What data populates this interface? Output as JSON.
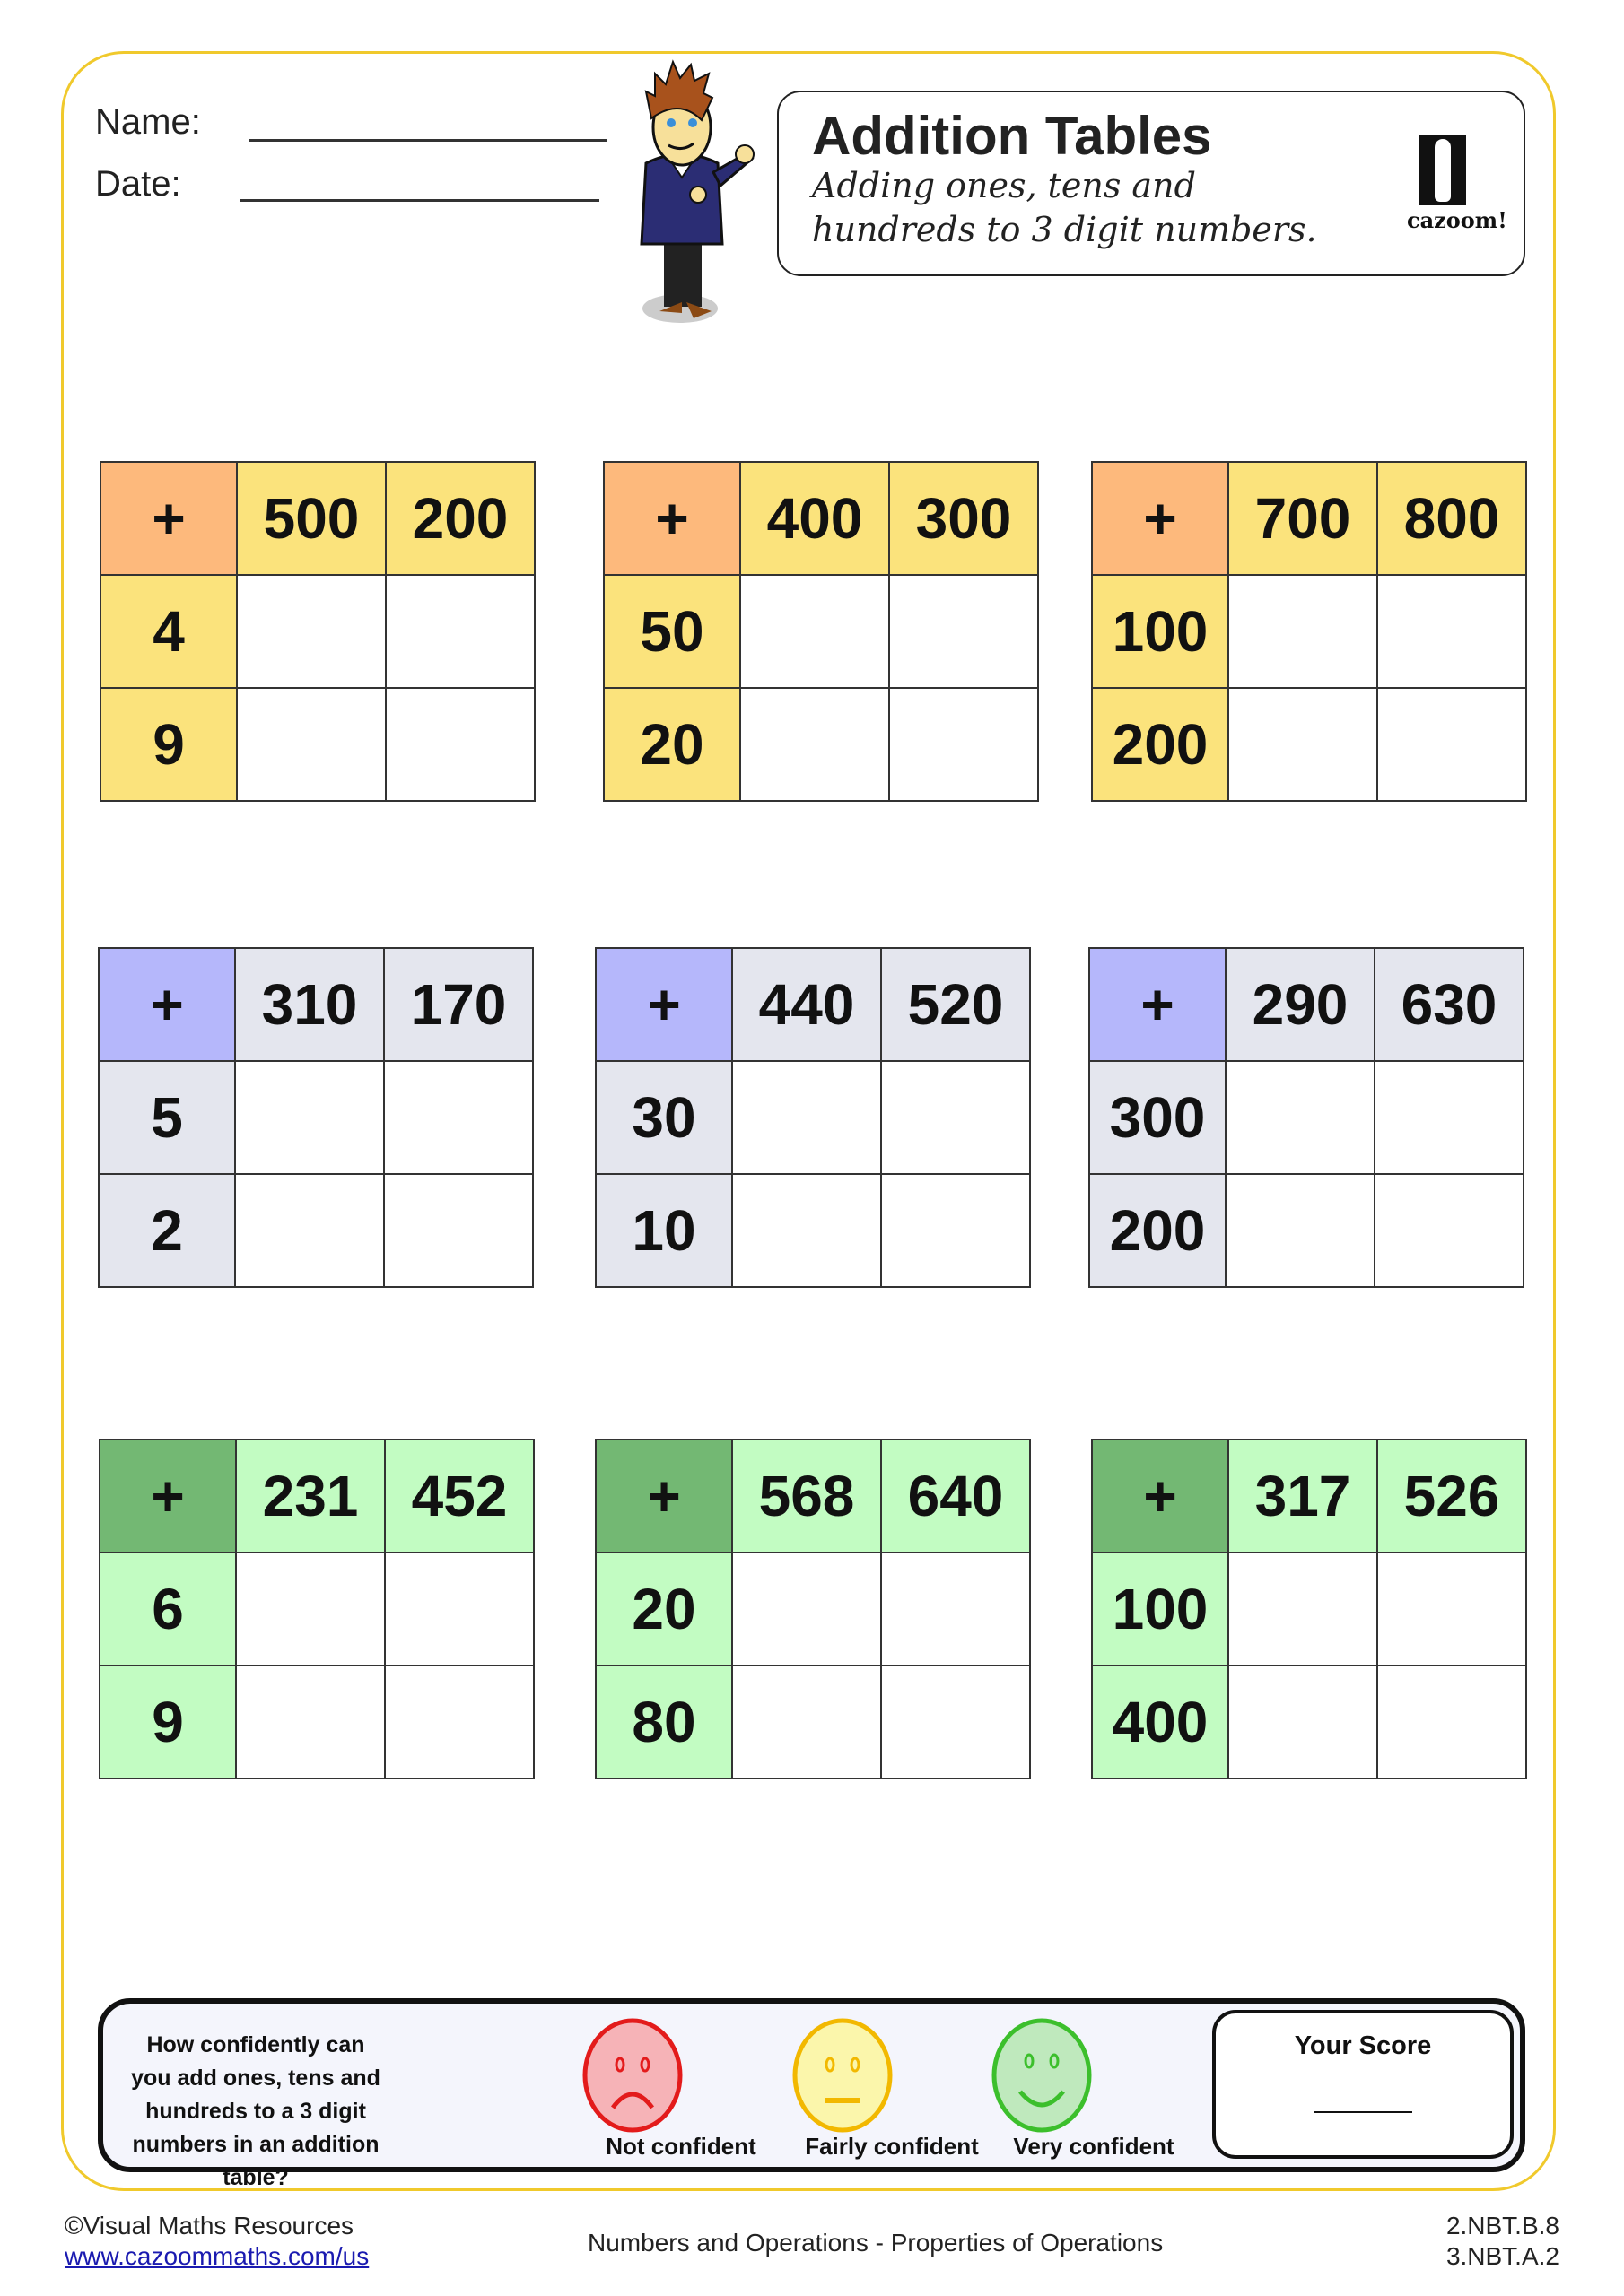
{
  "header": {
    "name_label": "Name:",
    "date_label": "Date:"
  },
  "title_box": {
    "title": "Addition Tables",
    "subtitle_line1": "Adding ones, tens and",
    "subtitle_line2": "hundreds to 3 digit numbers.",
    "logo_text": "cazoom!"
  },
  "colors": {
    "frame": "#f0c92c",
    "orange": "#fdb97c",
    "yellow": "#fbe37c",
    "purple": "#b5b7fb",
    "grey": "#e4e6ee",
    "dark_green": "#73b873",
    "light_green": "#c2fcc2"
  },
  "tables": [
    {
      "op": "+",
      "cols": [
        "500",
        "200"
      ],
      "rows": [
        "4",
        "9"
      ],
      "corner": "#fdb97c",
      "head": "#fbe37c"
    },
    {
      "op": "+",
      "cols": [
        "400",
        "300"
      ],
      "rows": [
        "50",
        "20"
      ],
      "corner": "#fdb97c",
      "head": "#fbe37c"
    },
    {
      "op": "+",
      "cols": [
        "700",
        "800"
      ],
      "rows": [
        "100",
        "200"
      ],
      "corner": "#fdb97c",
      "head": "#fbe37c"
    },
    {
      "op": "+",
      "cols": [
        "310",
        "170"
      ],
      "rows": [
        "5",
        "2"
      ],
      "corner": "#b5b7fb",
      "head": "#e4e6ee"
    },
    {
      "op": "+",
      "cols": [
        "440",
        "520"
      ],
      "rows": [
        "30",
        "10"
      ],
      "corner": "#b5b7fb",
      "head": "#e4e6ee"
    },
    {
      "op": "+",
      "cols": [
        "290",
        "630"
      ],
      "rows": [
        "300",
        "200"
      ],
      "corner": "#b5b7fb",
      "head": "#e4e6ee"
    },
    {
      "op": "+",
      "cols": [
        "231",
        "452"
      ],
      "rows": [
        "6",
        "9"
      ],
      "corner": "#73b873",
      "head": "#c2fcc2"
    },
    {
      "op": "+",
      "cols": [
        "568",
        "640"
      ],
      "rows": [
        "20",
        "80"
      ],
      "corner": "#73b873",
      "head": "#c2fcc2"
    },
    {
      "op": "+",
      "cols": [
        "317",
        "526"
      ],
      "rows": [
        "100",
        "400"
      ],
      "corner": "#73b873",
      "head": "#c2fcc2"
    }
  ],
  "confidence": {
    "question": "How confidently can you add ones, tens and hundreds to a 3 digit numbers in an addition table?",
    "faces": [
      {
        "label": "Not confident",
        "icon": "sad-face-icon",
        "color": "#e31b1b",
        "fill": "#f6b3b7"
      },
      {
        "label": "Fairly confident",
        "icon": "neutral-face-icon",
        "color": "#f2b800",
        "fill": "#fbf6ab"
      },
      {
        "label": "Very confident",
        "icon": "happy-face-icon",
        "color": "#3cbf2c",
        "fill": "#bfe9bd"
      }
    ],
    "score_label": "Your Score"
  },
  "footer": {
    "copyright": "©Visual Maths Resources",
    "link": "www.cazoommaths.com/us",
    "topic": "Numbers and Operations -  Properties of Operations",
    "standard1": "2.NBT.B.8",
    "standard2": "3.NBT.A.2"
  }
}
